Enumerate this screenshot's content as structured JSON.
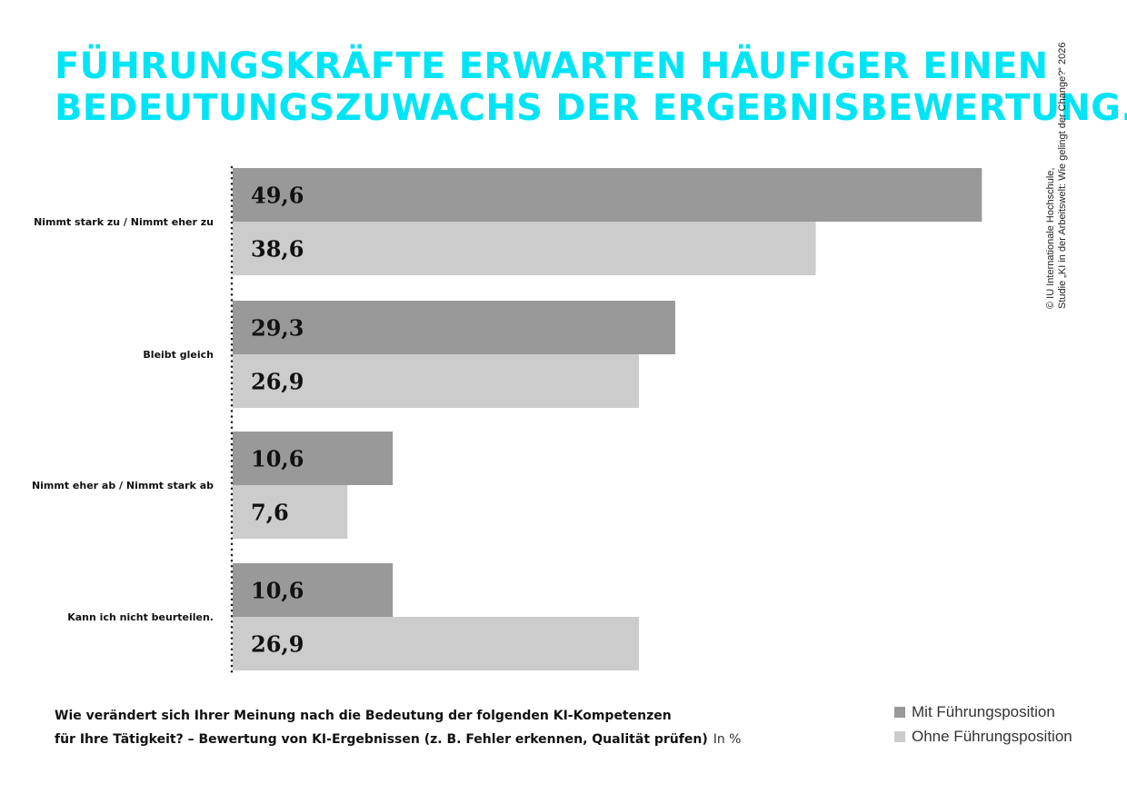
{
  "title_lines": [
    "FÜHRUNGSKRÄFTE ERWARTEN HÄUFIGER EINEN",
    "BEDEUTUNGSZUWACHS DER ERGEBNISBEWERTUNG."
  ],
  "credit_lines": [
    "© IU Internationale Hochschule,",
    "Studie „KI in der Arbeitswelt: Wie gelingt der Change?“ 2026"
  ],
  "question": {
    "line1": "Wie verändert sich Ihrer Meinung nach die Bedeutung der folgenden KI-Kompetenzen",
    "line2": "für Ihre Tätigkeit? – Bewertung von KI-Ergebnissen (z. B. Fehler erkennen, Qualität prüfen)",
    "unit": "In %"
  },
  "colors": {
    "title": "#00e5f5",
    "series_with": "#999999",
    "series_without": "#cccccc",
    "axis": "#222222"
  },
  "chart_data": {
    "type": "bar",
    "orientation": "horizontal",
    "categories": [
      "Nimmt stark zu / Nimmt eher zu",
      "Bleibt gleich",
      "Nimmt eher ab / Nimmt stark ab",
      "Kann ich nicht beurteilen."
    ],
    "series": [
      {
        "name": "Mit Führungsposition",
        "values": [
          49.6,
          29.3,
          10.6,
          10.6
        ],
        "labels": [
          "49,6",
          "29,3",
          "10,6",
          "10,6"
        ]
      },
      {
        "name": "Ohne Führungsposition",
        "values": [
          38.6,
          26.9,
          7.6,
          26.9
        ],
        "labels": [
          "38,6",
          "26,9",
          "7,6",
          "26,9"
        ]
      }
    ],
    "xlim": [
      0,
      50
    ],
    "grid": false,
    "legend_position": "bottom-right"
  }
}
